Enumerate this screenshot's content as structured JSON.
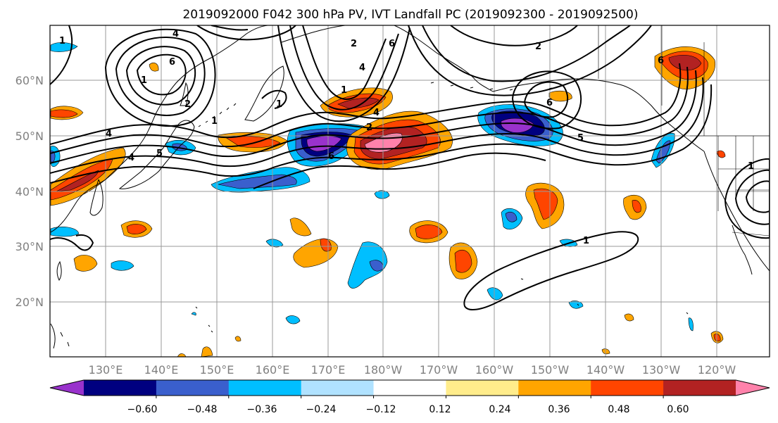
{
  "title": "2019092000 F042 300 hPa PV, IVT Landfall PC (2019092300 - 2019092500)",
  "map": {
    "lat_labels": [
      "60°N",
      "50°N",
      "40°N",
      "30°N",
      "20°N"
    ],
    "lon_labels": [
      "130°E",
      "140°E",
      "150°E",
      "160°E",
      "170°E",
      "180°W",
      "170°W",
      "160°W",
      "150°W",
      "140°W",
      "130°W",
      "120°W"
    ],
    "contour_labels": [
      "1",
      "4",
      "6",
      "1",
      "2",
      "4",
      "1",
      "4",
      "5",
      "6",
      "1",
      "4",
      "2",
      "6",
      "1",
      "2",
      "4",
      "6",
      "1",
      "2",
      "5",
      "1",
      "6"
    ]
  },
  "colorbar": {
    "tick_labels": [
      "−0.60",
      "−0.48",
      "−0.36",
      "−0.24",
      "−0.12",
      "0.12",
      "0.24",
      "0.36",
      "0.48",
      "0.60"
    ],
    "colors": [
      "#9932cc",
      "#000080",
      "#3a5fcd",
      "#00bfff",
      "#b0e2ff",
      "#ffffff",
      "#ffec8b",
      "#ffa500",
      "#ff4500",
      "#b22222",
      "#ff82ab"
    ]
  }
}
